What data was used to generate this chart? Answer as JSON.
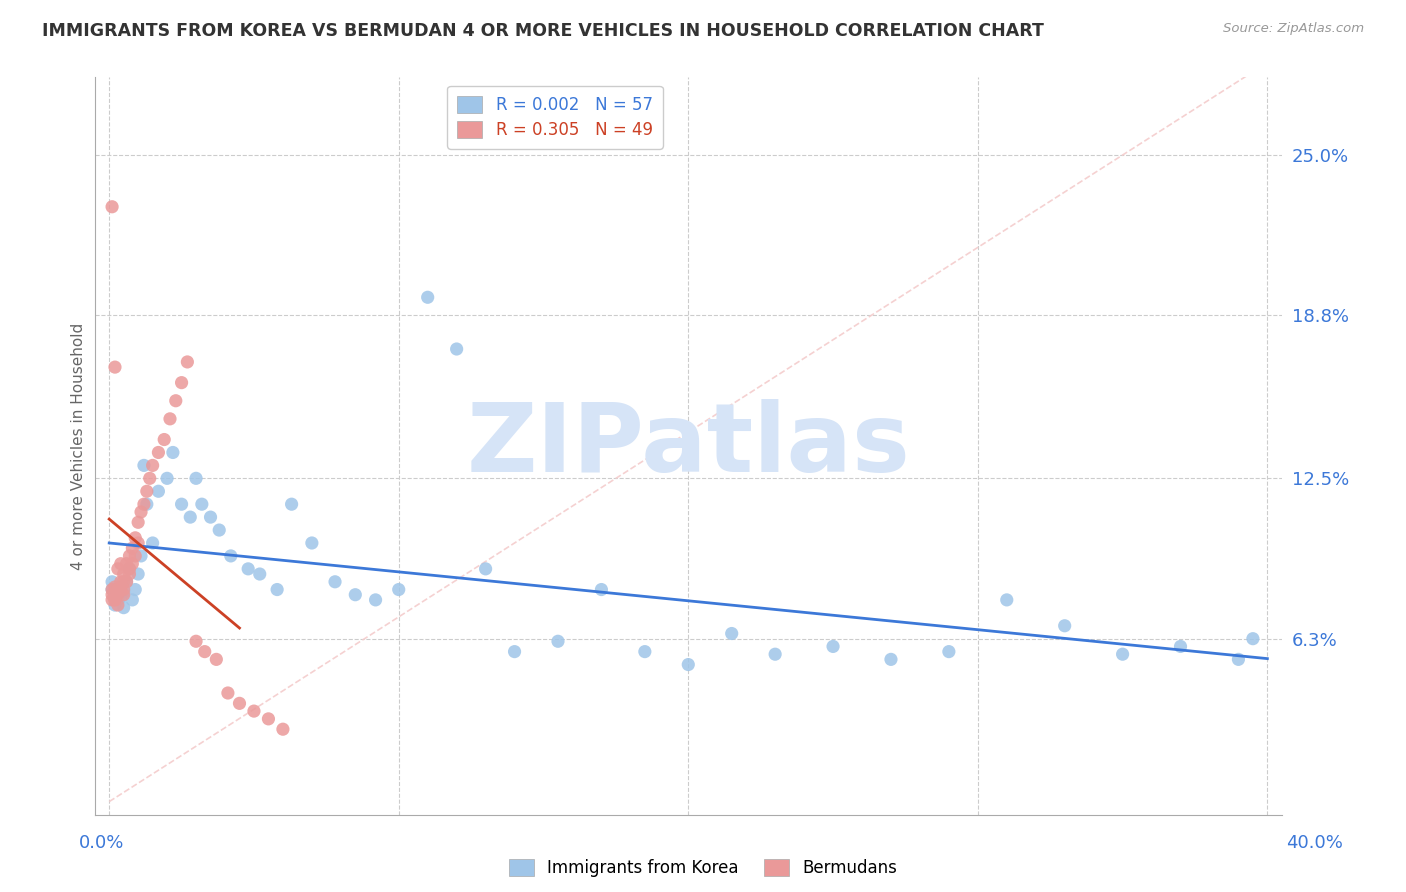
{
  "title": "IMMIGRANTS FROM KOREA VS BERMUDAN 4 OR MORE VEHICLES IN HOUSEHOLD CORRELATION CHART",
  "source": "Source: ZipAtlas.com",
  "ylabel": "4 or more Vehicles in Household",
  "ytick_labels": [
    "6.3%",
    "12.5%",
    "18.8%",
    "25.0%"
  ],
  "ytick_values": [
    0.063,
    0.125,
    0.188,
    0.25
  ],
  "xlim": [
    0.0,
    0.4
  ],
  "ylim": [
    -0.005,
    0.28
  ],
  "korea_color": "#9fc5e8",
  "bermuda_color": "#ea9999",
  "korea_line_color": "#3c78d8",
  "bermuda_line_color": "#cc4125",
  "diag_line_color": "#f4cccc",
  "watermark_color": "#d6e4f7",
  "korea_x": [
    0.001,
    0.001,
    0.002,
    0.002,
    0.003,
    0.003,
    0.004,
    0.004,
    0.005,
    0.005,
    0.006,
    0.007,
    0.008,
    0.009,
    0.01,
    0.011,
    0.012,
    0.013,
    0.015,
    0.017,
    0.02,
    0.022,
    0.025,
    0.028,
    0.03,
    0.032,
    0.035,
    0.038,
    0.042,
    0.048,
    0.052,
    0.058,
    0.063,
    0.07,
    0.078,
    0.085,
    0.092,
    0.1,
    0.11,
    0.12,
    0.13,
    0.14,
    0.155,
    0.17,
    0.185,
    0.2,
    0.215,
    0.23,
    0.25,
    0.27,
    0.29,
    0.31,
    0.33,
    0.35,
    0.37,
    0.39,
    0.395
  ],
  "korea_y": [
    0.085,
    0.082,
    0.079,
    0.076,
    0.082,
    0.078,
    0.083,
    0.079,
    0.075,
    0.081,
    0.085,
    0.09,
    0.078,
    0.082,
    0.088,
    0.095,
    0.13,
    0.115,
    0.1,
    0.12,
    0.125,
    0.135,
    0.115,
    0.11,
    0.125,
    0.115,
    0.11,
    0.105,
    0.095,
    0.09,
    0.088,
    0.082,
    0.115,
    0.1,
    0.085,
    0.08,
    0.078,
    0.082,
    0.195,
    0.175,
    0.09,
    0.058,
    0.062,
    0.082,
    0.058,
    0.053,
    0.065,
    0.057,
    0.06,
    0.055,
    0.058,
    0.078,
    0.068,
    0.057,
    0.06,
    0.055,
    0.063
  ],
  "bermuda_x": [
    0.001,
    0.001,
    0.001,
    0.002,
    0.002,
    0.002,
    0.003,
    0.003,
    0.003,
    0.004,
    0.004,
    0.004,
    0.005,
    0.005,
    0.005,
    0.006,
    0.006,
    0.007,
    0.007,
    0.008,
    0.008,
    0.009,
    0.009,
    0.01,
    0.01,
    0.011,
    0.012,
    0.013,
    0.014,
    0.015,
    0.017,
    0.019,
    0.021,
    0.023,
    0.025,
    0.027,
    0.03,
    0.033,
    0.037,
    0.041,
    0.045,
    0.05,
    0.055,
    0.06,
    0.001,
    0.002,
    0.003,
    0.005,
    0.007
  ],
  "bermuda_y": [
    0.078,
    0.082,
    0.23,
    0.078,
    0.083,
    0.168,
    0.082,
    0.08,
    0.09,
    0.082,
    0.085,
    0.092,
    0.08,
    0.085,
    0.088,
    0.085,
    0.092,
    0.09,
    0.095,
    0.092,
    0.098,
    0.095,
    0.102,
    0.1,
    0.108,
    0.112,
    0.115,
    0.12,
    0.125,
    0.13,
    0.135,
    0.14,
    0.148,
    0.155,
    0.162,
    0.17,
    0.062,
    0.058,
    0.055,
    0.042,
    0.038,
    0.035,
    0.032,
    0.028,
    0.08,
    0.078,
    0.076,
    0.082,
    0.088
  ]
}
